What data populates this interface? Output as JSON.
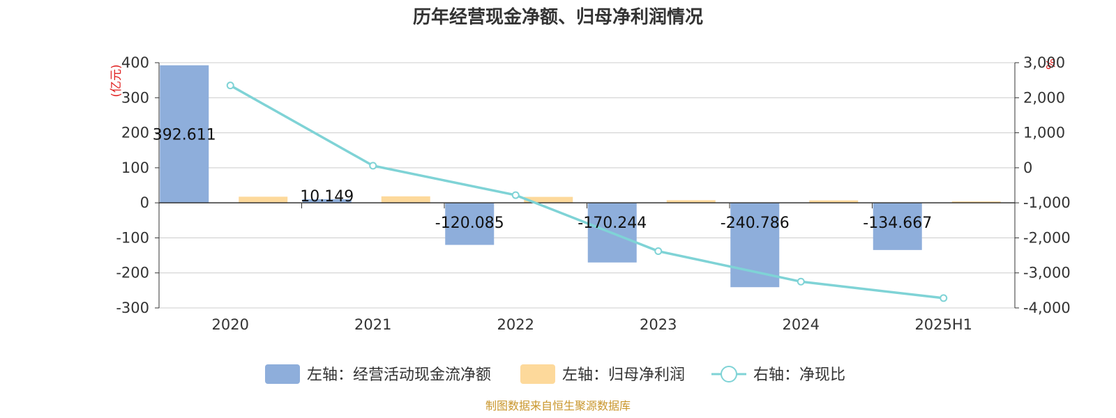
{
  "chart_data": {
    "type": "bar",
    "title": "历年经营现金净额、归母净利润情况",
    "categories": [
      "2020",
      "2021",
      "2022",
      "2023",
      "2024",
      "2025H1"
    ],
    "y_left": {
      "unit": "(亿元)",
      "ylim": [
        -300,
        400
      ],
      "ticks": [
        400,
        300,
        200,
        100,
        0,
        -100,
        -200,
        -300
      ],
      "tick_labels": [
        "400",
        "300",
        "200",
        "100",
        "0",
        "-100",
        "-200",
        "-300"
      ]
    },
    "y_right": {
      "unit": "%",
      "ylim": [
        -4000,
        3000
      ],
      "ticks": [
        3000,
        2000,
        1000,
        0,
        -1000,
        -2000,
        -3000,
        -4000
      ],
      "tick_labels": [
        "3,000",
        "2,000",
        "1,000",
        "0",
        "-1,000",
        "-2,000",
        "-3,000",
        "-4,000"
      ]
    },
    "series": [
      {
        "name": "左轴：经营活动现金流净额",
        "type": "bar",
        "axis": "left",
        "color": "#8eaedb",
        "values": [
          392.611,
          10.149,
          -120.085,
          -170.244,
          -240.786,
          -134.667
        ],
        "labels": [
          "392.611",
          "10.149",
          "-120.085",
          "-170.244",
          "-240.786",
          "-134.667"
        ]
      },
      {
        "name": "左轴：归母净利润",
        "type": "bar",
        "axis": "left",
        "color": "#fdd99b",
        "values": [
          17.5,
          18.5,
          17.0,
          7.5,
          7.0,
          4.0
        ]
      },
      {
        "name": "右轴：净现比",
        "type": "line",
        "axis": "right",
        "color": "#7fd3d6",
        "values": [
          2350,
          60,
          -780,
          -2380,
          -3250,
          -3720
        ]
      }
    ],
    "grid": true,
    "legend_position": "bottom",
    "source": "制图数据来自恒生聚源数据库"
  }
}
